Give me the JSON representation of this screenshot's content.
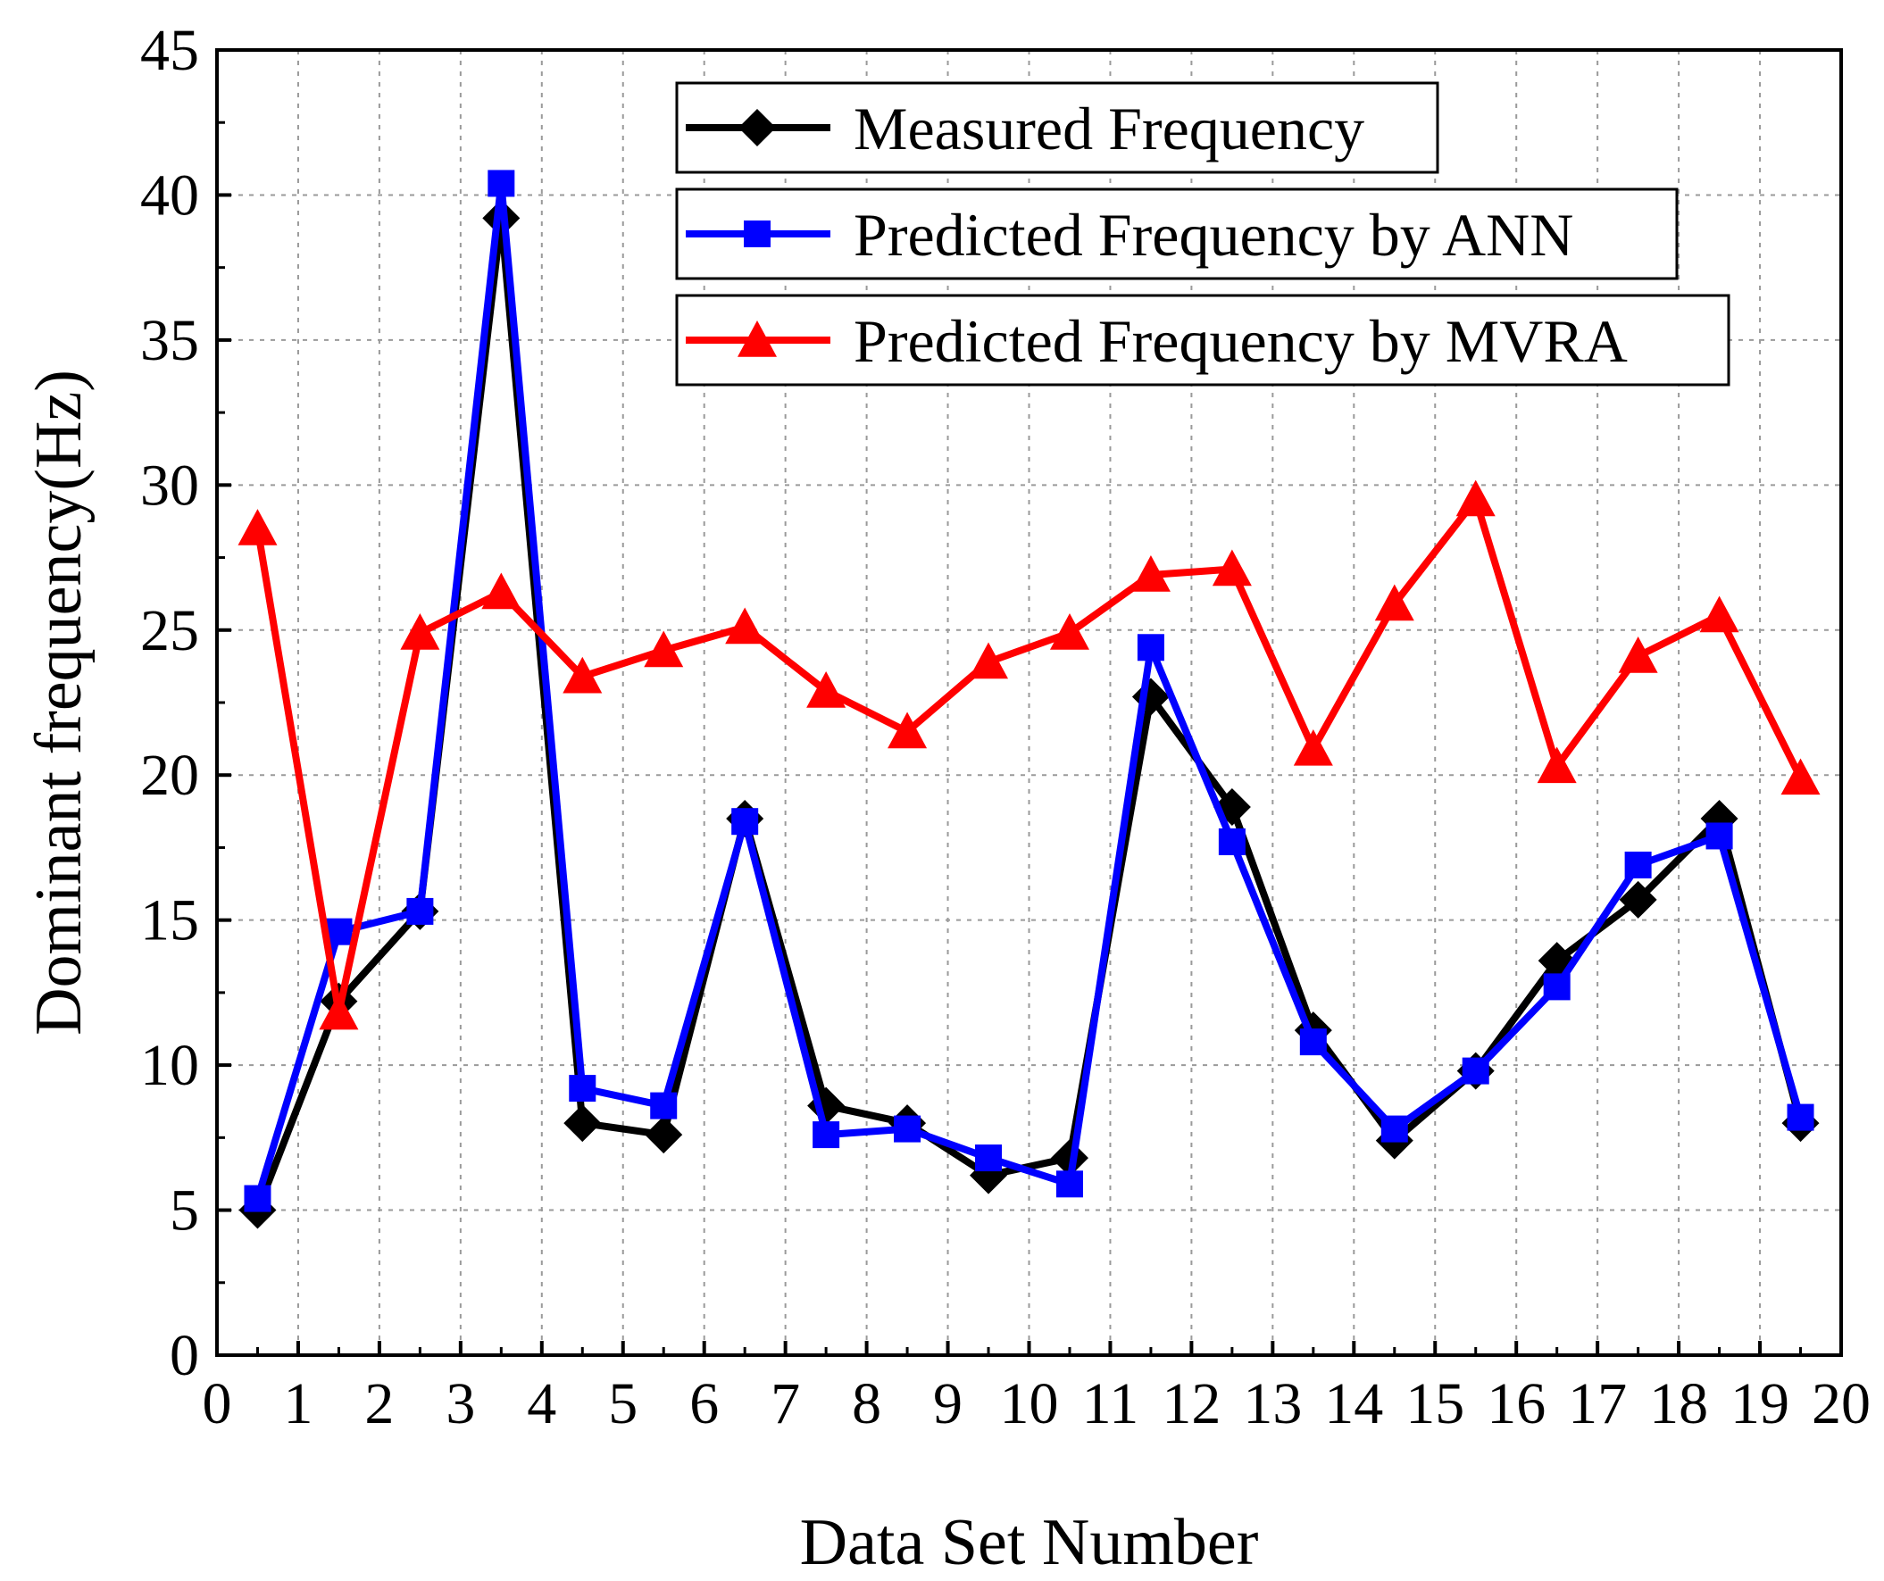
{
  "chart_data": {
    "type": "line",
    "title": "",
    "xlabel": "Data Set Number",
    "ylabel": "Dominant frequency(Hz)",
    "xlim": [
      0,
      20
    ],
    "ylim": [
      0,
      45
    ],
    "xticks": [
      "0",
      "1",
      "2",
      "3",
      "4",
      "5",
      "6",
      "7",
      "8",
      "9",
      "10",
      "11",
      "12",
      "13",
      "14",
      "15",
      "16",
      "17",
      "18",
      "19",
      "20"
    ],
    "yticks": [
      "0",
      "5",
      "10",
      "15",
      "20",
      "25",
      "30",
      "35",
      "40",
      "45"
    ],
    "grid": true,
    "legend_position": "top-right",
    "x": [
      0.5,
      1.5,
      2.5,
      3.5,
      4.5,
      5.5,
      6.5,
      7.5,
      8.5,
      9.5,
      10.5,
      11.5,
      12.5,
      13.5,
      14.5,
      15.5,
      16.5,
      17.5,
      18.5,
      19.5
    ],
    "series": [
      {
        "name": "Measured Frequency",
        "color": "#000000",
        "marker": "diamond",
        "values": [
          5.0,
          12.2,
          15.3,
          39.2,
          8.0,
          7.6,
          18.5,
          8.6,
          8.0,
          6.2,
          6.8,
          22.7,
          18.9,
          11.2,
          7.4,
          9.8,
          13.6,
          15.7,
          18.5,
          8.0
        ]
      },
      {
        "name": "Predicted Frequency by ANN",
        "color": "#0000ff",
        "marker": "square",
        "values": [
          5.4,
          14.6,
          15.3,
          40.4,
          9.2,
          8.6,
          18.4,
          7.6,
          7.8,
          6.8,
          5.9,
          24.4,
          17.7,
          10.8,
          7.8,
          9.8,
          12.7,
          16.9,
          17.9,
          8.2
        ]
      },
      {
        "name": "Predicted Frequency by MVRA",
        "color": "#ff0000",
        "marker": "triangle",
        "values": [
          28.5,
          11.8,
          24.9,
          26.3,
          23.4,
          24.3,
          25.1,
          22.9,
          21.5,
          23.9,
          24.9,
          26.9,
          27.1,
          20.9,
          25.9,
          29.5,
          20.3,
          24.1,
          25.5,
          19.9
        ]
      }
    ]
  }
}
